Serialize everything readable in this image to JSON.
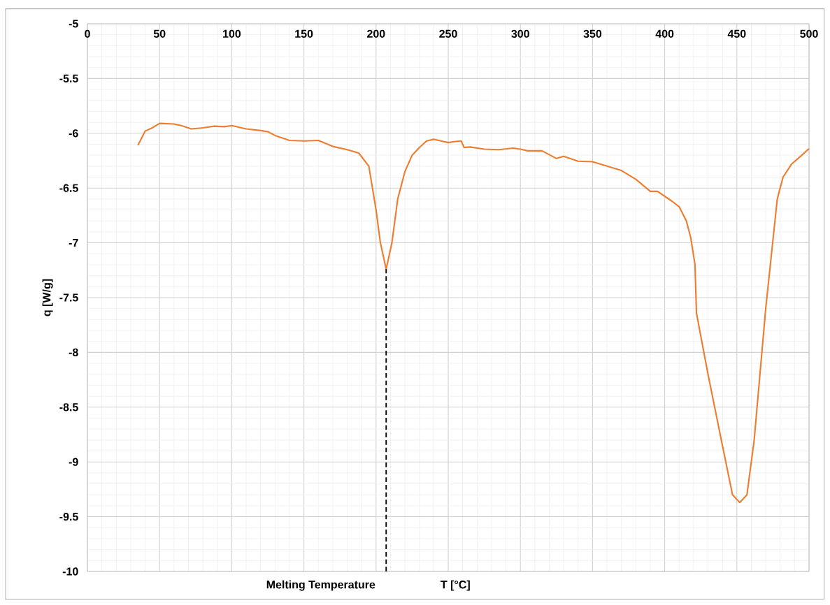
{
  "chart_data": {
    "type": "line",
    "xlabel": "T [°C]",
    "ylabel": "q [W/g]",
    "x": [
      35,
      40,
      45,
      50,
      60,
      65,
      72,
      80,
      88,
      95,
      100,
      110,
      120,
      125,
      130,
      140,
      150,
      160,
      170,
      180,
      188,
      195,
      200,
      203,
      207,
      211,
      215,
      220,
      225,
      230,
      235,
      240,
      245,
      250,
      255,
      259,
      261,
      265,
      275,
      285,
      295,
      300,
      305,
      315,
      325,
      330,
      340,
      350,
      360,
      370,
      380,
      390,
      395,
      405,
      410,
      415,
      418,
      421,
      422,
      430,
      440,
      447,
      452,
      457,
      462,
      470,
      478,
      482,
      488,
      495,
      500
    ],
    "series": [
      {
        "color": "#ed7d31",
        "values": [
          -6.11,
          -5.98,
          -5.95,
          -5.91,
          -5.915,
          -5.93,
          -5.96,
          -5.95,
          -5.935,
          -5.94,
          -5.93,
          -5.96,
          -5.975,
          -5.985,
          -6.02,
          -6.065,
          -6.07,
          -6.065,
          -6.12,
          -6.15,
          -6.18,
          -6.3,
          -6.7,
          -7.0,
          -7.24,
          -7.0,
          -6.6,
          -6.35,
          -6.2,
          -6.13,
          -6.07,
          -6.055,
          -6.07,
          -6.085,
          -6.075,
          -6.07,
          -6.13,
          -6.125,
          -6.145,
          -6.15,
          -6.135,
          -6.145,
          -6.16,
          -6.16,
          -6.23,
          -6.21,
          -6.255,
          -6.26,
          -6.3,
          -6.34,
          -6.42,
          -6.53,
          -6.53,
          -6.62,
          -6.67,
          -6.8,
          -6.95,
          -7.2,
          -7.64,
          -8.2,
          -8.85,
          -9.3,
          -9.37,
          -9.3,
          -8.8,
          -7.6,
          -6.6,
          -6.4,
          -6.28,
          -6.2,
          -6.14
        ]
      }
    ],
    "xlim": [
      0,
      500
    ],
    "ylim": [
      -10,
      -5
    ],
    "xticks": [
      0,
      50,
      100,
      150,
      200,
      250,
      300,
      350,
      400,
      450,
      500
    ],
    "yticks": [
      -10,
      -9.5,
      -9,
      -8.5,
      -8,
      -7.5,
      -7,
      -6.5,
      -6,
      -5.5,
      -5
    ],
    "grid": true,
    "marker": "none",
    "line_style": "solid",
    "ref_lines": [
      {
        "axis": "x",
        "value": 207,
        "label": "Melting Temperature",
        "color": "#000000",
        "line_style": "dashed"
      }
    ]
  }
}
